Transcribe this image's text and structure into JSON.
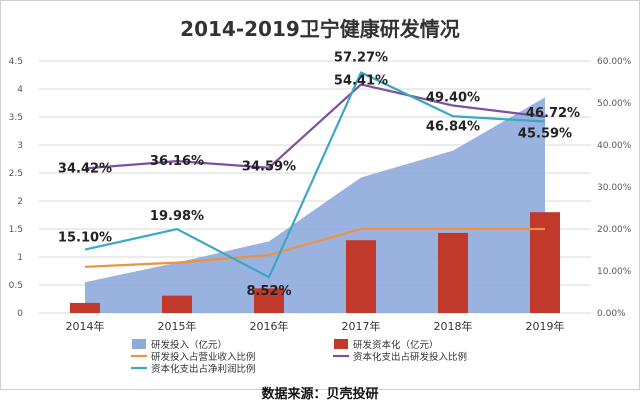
{
  "chart_data": {
    "type": "bar",
    "title": "2014-2019卫宁健康研发情况",
    "categories": [
      "2014年",
      "2015年",
      "2016年",
      "2017年",
      "2018年",
      "2019年"
    ],
    "y_left": {
      "range": [
        0,
        4.5
      ],
      "ticks": [
        "0",
        "0.5",
        "1",
        "1.5",
        "2",
        "2.5",
        "3",
        "3.5",
        "4",
        "4.5"
      ]
    },
    "y_right": {
      "range": [
        0,
        60
      ],
      "ticks": [
        "0.00%",
        "10.00%",
        "20.00%",
        "30.00%",
        "40.00%",
        "50.00%",
        "60.00%"
      ]
    },
    "grid": true,
    "legend_position": "bottom",
    "series": [
      {
        "name": "研发投入（亿元）",
        "kind": "area",
        "axis": "left",
        "color": "#8eaadb",
        "values": [
          0.55,
          0.9,
          1.28,
          2.42,
          2.9,
          3.85
        ]
      },
      {
        "name": "研发资本化（亿元）",
        "kind": "bar",
        "axis": "left",
        "color": "#c0392b",
        "values": [
          0.18,
          0.31,
          0.44,
          1.3,
          1.43,
          1.8
        ]
      },
      {
        "name": "研发投入占营业收入比例",
        "kind": "line",
        "axis": "right",
        "color": "#ee9240",
        "values": [
          11.0,
          12.0,
          13.8,
          20.0,
          20.0,
          20.0
        ]
      },
      {
        "name": "资本化支出占研发投入比例",
        "kind": "line",
        "axis": "right",
        "color": "#7c4f9f",
        "values": [
          34.42,
          36.16,
          34.59,
          54.41,
          49.4,
          46.72
        ],
        "labels": [
          "34.42%",
          "36.16%",
          "34.59%",
          "54.41%",
          "49.40%",
          "46.72%"
        ]
      },
      {
        "name": "资本化支出占净利润比例",
        "kind": "line",
        "axis": "right",
        "color": "#3aa7c4",
        "values": [
          15.1,
          19.98,
          8.52,
          57.27,
          46.84,
          45.59
        ],
        "labels": [
          "15.10%",
          "19.98%",
          "8.52%",
          "57.27%",
          "46.84%",
          "45.59%"
        ]
      }
    ]
  },
  "source_note": "数据来源：贝壳投研"
}
